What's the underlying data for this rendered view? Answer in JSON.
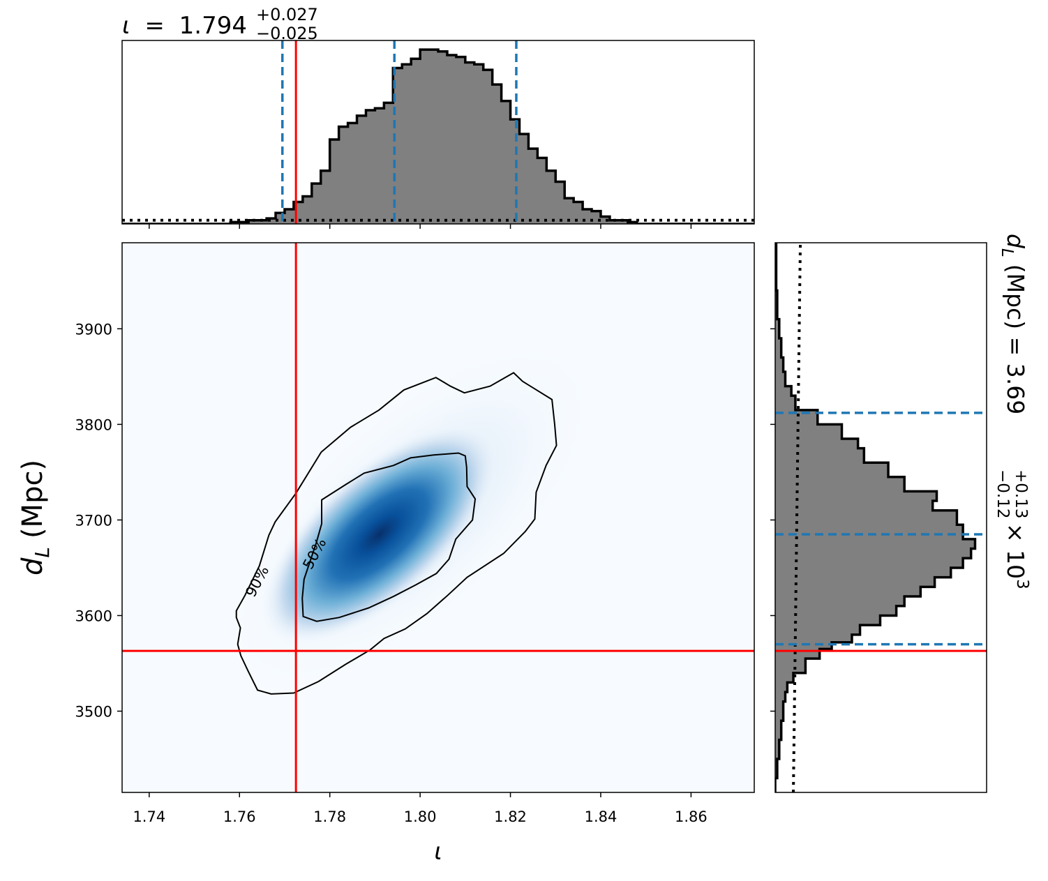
{
  "chart_data": [
    {
      "type": "area",
      "panel": "top-marginal",
      "title_symbol": "ι",
      "title_equals": "=",
      "title_value": "1.794",
      "title_plus": "+0.027",
      "title_minus": "−0.025",
      "xlim": [
        1.734,
        1.874
      ],
      "series": [
        {
          "values": [
            0,
            0,
            0,
            0,
            0,
            0,
            0,
            0,
            0,
            0,
            0,
            0,
            0.01,
            0.01,
            0.02,
            0.02,
            0.03,
            0.06,
            0.08,
            0.12,
            0.15,
            0.22,
            0.29,
            0.46,
            0.53,
            0.55,
            0.59,
            0.62,
            0.63,
            0.66,
            0.85,
            0.87,
            0.9,
            0.95,
            0.95,
            0.94,
            0.92,
            0.91,
            0.88,
            0.87,
            0.84,
            0.76,
            0.67,
            0.57,
            0.49,
            0.41,
            0.36,
            0.29,
            0.23,
            0.14,
            0.12,
            0.08,
            0.07,
            0.04,
            0.02,
            0.02,
            0.01,
            0,
            0,
            0,
            0,
            0,
            0,
            0,
            0,
            0,
            0,
            0,
            0,
            0
          ],
          "bin_start": 1.734,
          "bin_width": 0.002
        }
      ],
      "prior_level": 0.02,
      "quantile_lines": [
        1.7695,
        1.7943,
        1.8213
      ],
      "truth": 1.7725
    },
    {
      "type": "heatmap",
      "panel": "joint",
      "xlabel": "ι",
      "ylabel_main": "d",
      "ylabel_sub": "L",
      "ylabel_unit": "(Mpc)",
      "xlim": [
        1.734,
        1.874
      ],
      "ylim": [
        3415,
        3990
      ],
      "x_ticks": [
        "1.74",
        "1.76",
        "1.78",
        "1.80",
        "1.82",
        "1.84",
        "1.86"
      ],
      "y_ticks": [
        "3500",
        "3600",
        "3700",
        "3800",
        "3900"
      ],
      "density_peak": [
        1.791,
        3685
      ],
      "contour_labels": [
        "50%",
        "90%"
      ],
      "contours": [
        {
          "label": "50%",
          "points": [
            [
              1.7782,
              3721
            ],
            [
              1.7835,
              3737
            ],
            [
              1.7876,
              3749
            ],
            [
              1.7941,
              3757
            ],
            [
              1.7979,
              3765
            ],
            [
              1.803,
              3768
            ],
            [
              1.8085,
              3770
            ],
            [
              1.81,
              3767
            ],
            [
              1.8103,
              3755
            ],
            [
              1.8104,
              3735
            ],
            [
              1.8122,
              3722
            ],
            [
              1.8116,
              3700
            ],
            [
              1.8079,
              3680
            ],
            [
              1.8064,
              3659
            ],
            [
              1.8036,
              3644
            ],
            [
              1.799,
              3632
            ],
            [
              1.7941,
              3620
            ],
            [
              1.7886,
              3608
            ],
            [
              1.7821,
              3598
            ],
            [
              1.7771,
              3594
            ],
            [
              1.7741,
              3599
            ],
            [
              1.7739,
              3618
            ],
            [
              1.7743,
              3638
            ],
            [
              1.777,
              3676
            ],
            [
              1.7782,
              3696
            ],
            [
              1.7782,
              3721
            ]
          ]
        },
        {
          "label": "90%",
          "points": [
            [
              1.7725,
              3728
            ],
            [
              1.7781,
              3771
            ],
            [
              1.7846,
              3797
            ],
            [
              1.7909,
              3815
            ],
            [
              1.7964,
              3836
            ],
            [
              1.8035,
              3849
            ],
            [
              1.8067,
              3840
            ],
            [
              1.8098,
              3833
            ],
            [
              1.8155,
              3840
            ],
            [
              1.8207,
              3854
            ],
            [
              1.8227,
              3845
            ],
            [
              1.8292,
              3826
            ],
            [
              1.8298,
              3800
            ],
            [
              1.8302,
              3778
            ],
            [
              1.8279,
              3757
            ],
            [
              1.8257,
              3729
            ],
            [
              1.8254,
              3701
            ],
            [
              1.8233,
              3688
            ],
            [
              1.8185,
              3665
            ],
            [
              1.8104,
              3640
            ],
            [
              1.8063,
              3622
            ],
            [
              1.8015,
              3602
            ],
            [
              1.7967,
              3586
            ],
            [
              1.792,
              3576
            ],
            [
              1.7889,
              3564
            ],
            [
              1.7835,
              3549
            ],
            [
              1.7775,
              3531
            ],
            [
              1.772,
              3519
            ],
            [
              1.767,
              3518
            ],
            [
              1.764,
              3522
            ],
            [
              1.7619,
              3542
            ],
            [
              1.7603,
              3558
            ],
            [
              1.7596,
              3570
            ],
            [
              1.7602,
              3587
            ],
            [
              1.7593,
              3598
            ],
            [
              1.7593,
              3605
            ],
            [
              1.7612,
              3621
            ],
            [
              1.7644,
              3652
            ],
            [
              1.7665,
              3684
            ],
            [
              1.7679,
              3698
            ],
            [
              1.7725,
              3728
            ]
          ]
        }
      ],
      "truth_x": 1.7725,
      "truth_y": 3563
    },
    {
      "type": "area",
      "panel": "right-marginal",
      "orientation": "horizontal",
      "title_symbol": "d",
      "title_sub": "L",
      "title_unit_value": "(Mpc) = 3.69",
      "title_plus": "+0.13",
      "title_minus": "−0.12",
      "title_scale": "× 10",
      "title_exponent": "3",
      "ylim": [
        3415,
        3990
      ],
      "values": [
        [
          3415,
          0
        ],
        [
          3430,
          0.01
        ],
        [
          3450,
          0.02
        ],
        [
          3470,
          0.03
        ],
        [
          3490,
          0.04
        ],
        [
          3510,
          0.05
        ],
        [
          3520,
          0.06
        ],
        [
          3530,
          0.09
        ],
        [
          3540,
          0.15
        ],
        [
          3555,
          0.22
        ],
        [
          3565,
          0.28
        ],
        [
          3572,
          0.38
        ],
        [
          3580,
          0.42
        ],
        [
          3590,
          0.52
        ],
        [
          3600,
          0.6
        ],
        [
          3610,
          0.64
        ],
        [
          3620,
          0.72
        ],
        [
          3630,
          0.79
        ],
        [
          3640,
          0.87
        ],
        [
          3650,
          0.93
        ],
        [
          3660,
          0.97
        ],
        [
          3670,
          0.99
        ],
        [
          3680,
          0.93
        ],
        [
          3695,
          0.9
        ],
        [
          3710,
          0.78
        ],
        [
          3720,
          0.8
        ],
        [
          3730,
          0.64
        ],
        [
          3745,
          0.56
        ],
        [
          3760,
          0.44
        ],
        [
          3775,
          0.41
        ],
        [
          3785,
          0.33
        ],
        [
          3800,
          0.21
        ],
        [
          3815,
          0.1
        ],
        [
          3830,
          0.08
        ],
        [
          3840,
          0.05
        ],
        [
          3855,
          0.04
        ],
        [
          3870,
          0.03
        ],
        [
          3890,
          0.02
        ],
        [
          3910,
          0.01
        ],
        [
          3940,
          0.005
        ],
        [
          3990,
          0
        ]
      ],
      "prior_level": 0.09,
      "quantile_lines": [
        3570,
        3685,
        3812
      ],
      "truth": 3563
    }
  ],
  "colors": {
    "hist_fill": "#808080",
    "quantile_line": "#1f77b4",
    "truth_line": "#ff0000",
    "heat_low": "#f7fbff",
    "heat_high": "#08306b"
  }
}
